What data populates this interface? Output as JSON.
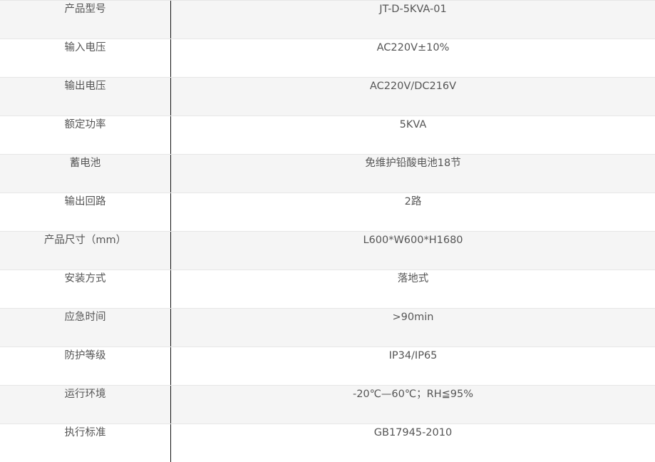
{
  "spec_table": {
    "rows": [
      {
        "label": "产品型号",
        "value": "JT-D-5KVA-01"
      },
      {
        "label": "输入电压",
        "value": "AC220V±10%"
      },
      {
        "label": "输出电压",
        "value": "AC220V/DC216V"
      },
      {
        "label": "额定功率",
        "value": "5KVA"
      },
      {
        "label": "蓄电池",
        "value": "免维护铅酸电池18节"
      },
      {
        "label": "输出回路",
        "value": "2路"
      },
      {
        "label": "产品尺寸（mm）",
        "value": "L600*W600*H1680"
      },
      {
        "label": "安装方式",
        "value": "落地式"
      },
      {
        "label": "应急时间",
        "value": ">90min"
      },
      {
        "label": "防护等级",
        "value": "IP34/IP65"
      },
      {
        "label": "运行环境",
        "value": "-20℃—60℃；RH≦95%"
      },
      {
        "label": "执行标准",
        "value": "GB17945-2010"
      }
    ]
  }
}
